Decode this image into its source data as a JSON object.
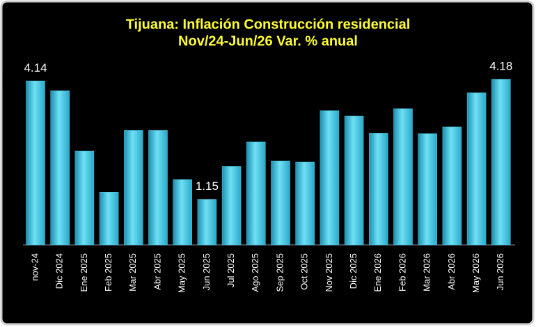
{
  "chart_data": {
    "type": "bar",
    "title": "Tijuana: Inflación Construcción residencial",
    "subtitle": "Nov/24-Jun/26 Var. % anual",
    "categories": [
      "nov-24",
      "Dic 2024",
      "Ene 2025",
      "Feb 2025",
      "Mar 2025",
      "Abr 2025",
      "May 2025",
      "Jun 2025",
      "Jul 2025",
      "Ago 2025",
      "Sep 2025",
      "Oct 2025",
      "Nov 2025",
      "Dic 2025",
      "Ene 2026",
      "Feb 2026",
      "Mar 2026",
      "Abr 2026",
      "May 2026",
      "Jun 2026"
    ],
    "values": [
      4.14,
      3.89,
      2.37,
      1.33,
      2.89,
      2.89,
      1.65,
      1.15,
      1.98,
      2.6,
      2.12,
      2.09,
      3.39,
      3.25,
      2.82,
      3.44,
      2.81,
      2.98,
      3.84,
      4.18
    ],
    "value_labels": [
      "4.14",
      null,
      null,
      null,
      null,
      null,
      null,
      "1.15",
      null,
      null,
      null,
      null,
      null,
      null,
      null,
      null,
      null,
      null,
      null,
      "4.18"
    ],
    "color": "#4fd0ec"
  }
}
